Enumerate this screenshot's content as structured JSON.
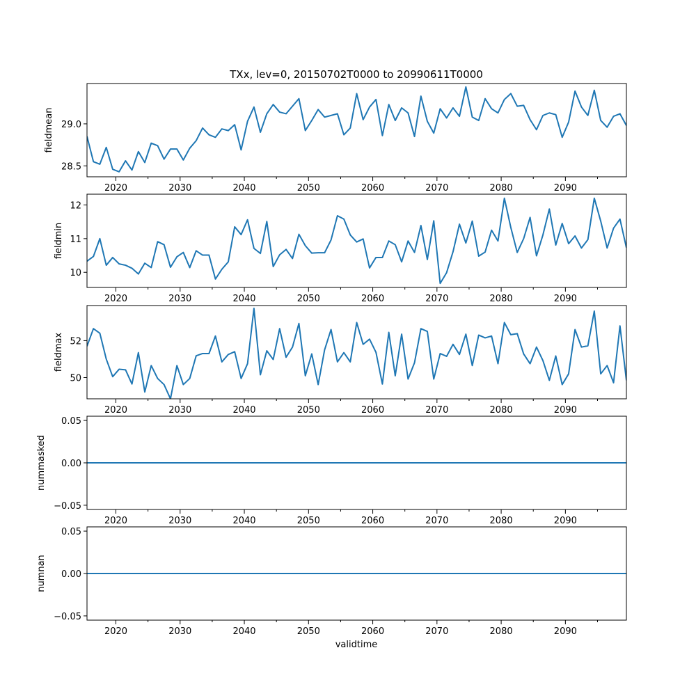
{
  "title": "TXx, lev=0, 20150702T0000 to 20990611T0000",
  "xlabel": "validtime",
  "line_color": "#1f77b4",
  "chart_data": [
    {
      "type": "line",
      "ylabel": "fieldmean",
      "xlim": [
        2015.5,
        2099.5
      ],
      "ylim": [
        28.37,
        29.48
      ],
      "xticks": [
        2020,
        2030,
        2040,
        2050,
        2060,
        2070,
        2080,
        2090
      ],
      "yticks": [
        28.5,
        29.0
      ],
      "ytick_labels": [
        "28.5",
        "29.0"
      ],
      "x_start": 2015.5,
      "values": [
        28.85,
        28.55,
        28.52,
        28.72,
        28.46,
        28.43,
        28.56,
        28.45,
        28.67,
        28.54,
        28.77,
        28.74,
        28.58,
        28.7,
        28.7,
        28.57,
        28.71,
        28.8,
        28.95,
        28.87,
        28.84,
        28.94,
        28.92,
        28.99,
        28.69,
        29.03,
        29.2,
        28.9,
        29.12,
        29.23,
        29.14,
        29.12,
        29.21,
        29.3,
        28.92,
        29.04,
        29.17,
        29.08,
        29.1,
        29.12,
        28.87,
        28.95,
        29.36,
        29.05,
        29.2,
        29.29,
        28.86,
        29.23,
        29.04,
        29.19,
        29.13,
        28.85,
        29.33,
        29.03,
        28.89,
        29.18,
        29.07,
        29.19,
        29.09,
        29.44,
        29.08,
        29.04,
        29.3,
        29.18,
        29.13,
        29.29,
        29.36,
        29.21,
        29.22,
        29.05,
        28.93,
        29.1,
        29.13,
        29.11,
        28.84,
        29.02,
        29.39,
        29.2,
        29.1,
        29.4,
        29.04,
        28.96,
        29.09,
        29.12,
        28.98
      ]
    },
    {
      "type": "line",
      "ylabel": "fieldmin",
      "xlim": [
        2015.5,
        2099.5
      ],
      "ylim": [
        9.55,
        12.32
      ],
      "xticks": [
        2020,
        2030,
        2040,
        2050,
        2060,
        2070,
        2080,
        2090
      ],
      "yticks": [
        10,
        11,
        12
      ],
      "ytick_labels": [
        "10",
        "11",
        "12"
      ],
      "x_start": 2015.5,
      "values": [
        10.33,
        10.47,
        11.0,
        10.21,
        10.44,
        10.25,
        10.21,
        10.12,
        9.95,
        10.27,
        10.14,
        10.91,
        10.82,
        10.15,
        10.46,
        10.59,
        10.14,
        10.64,
        10.51,
        10.51,
        9.8,
        10.09,
        10.31,
        11.35,
        11.12,
        11.56,
        10.71,
        10.56,
        11.51,
        10.17,
        10.52,
        10.68,
        10.41,
        11.13,
        10.79,
        10.57,
        10.58,
        10.58,
        10.96,
        11.68,
        11.58,
        11.11,
        10.9,
        10.99,
        10.13,
        10.44,
        10.44,
        10.93,
        10.82,
        10.31,
        10.93,
        10.59,
        11.39,
        10.38,
        11.53,
        9.67,
        9.99,
        10.61,
        11.43,
        10.87,
        11.52,
        10.48,
        10.6,
        11.25,
        10.93,
        12.2,
        11.33,
        10.59,
        11.0,
        11.63,
        10.49,
        11.11,
        11.88,
        10.81,
        11.45,
        10.85,
        11.08,
        10.72,
        10.97,
        12.2,
        11.52,
        10.72,
        11.31,
        11.58,
        10.73
      ]
    },
    {
      "type": "line",
      "ylabel": "fieldmax",
      "xlim": [
        2015.5,
        2099.5
      ],
      "ylim": [
        48.85,
        53.9
      ],
      "xticks": [
        2020,
        2030,
        2040,
        2050,
        2060,
        2070,
        2080,
        2090
      ],
      "yticks": [
        50,
        52
      ],
      "ytick_labels": [
        "50",
        "52"
      ],
      "x_start": 2015.5,
      "values": [
        51.7,
        52.65,
        52.4,
        51.0,
        50.05,
        50.45,
        50.42,
        49.65,
        51.35,
        49.22,
        50.65,
        49.95,
        49.62,
        48.85,
        50.65,
        49.62,
        49.95,
        51.18,
        51.3,
        51.3,
        52.25,
        50.85,
        51.25,
        51.4,
        49.95,
        50.75,
        53.75,
        50.15,
        51.45,
        50.98,
        52.65,
        51.1,
        51.65,
        52.93,
        50.1,
        51.28,
        49.62,
        51.5,
        52.6,
        50.85,
        51.35,
        50.85,
        52.98,
        51.8,
        52.08,
        51.37,
        49.65,
        52.45,
        50.1,
        52.35,
        49.92,
        50.8,
        52.65,
        52.5,
        49.92,
        51.3,
        51.15,
        51.8,
        51.25,
        52.35,
        50.65,
        52.3,
        52.15,
        52.25,
        50.75,
        52.98,
        52.32,
        52.38,
        51.28,
        50.75,
        51.65,
        50.92,
        49.85,
        51.17,
        49.62,
        50.2,
        52.6,
        51.65,
        51.72,
        53.6,
        50.2,
        50.65,
        49.72,
        52.8,
        49.85
      ]
    },
    {
      "type": "line",
      "ylabel": "nummasked",
      "xlim": [
        2015.5,
        2099.5
      ],
      "ylim": [
        -0.055,
        0.055
      ],
      "xticks": [
        2020,
        2030,
        2040,
        2050,
        2060,
        2070,
        2080,
        2090
      ],
      "yticks": [
        -0.05,
        0.0,
        0.05
      ],
      "ytick_labels": [
        "−0.05",
        "0.00",
        "0.05"
      ],
      "x_start": 2015.5,
      "values": [
        0,
        0
      ]
    },
    {
      "type": "line",
      "ylabel": "numnan",
      "xlim": [
        2015.5,
        2099.5
      ],
      "ylim": [
        -0.055,
        0.055
      ],
      "xticks": [
        2020,
        2030,
        2040,
        2050,
        2060,
        2070,
        2080,
        2090
      ],
      "yticks": [
        -0.05,
        0.0,
        0.05
      ],
      "ytick_labels": [
        "−0.05",
        "0.00",
        "0.05"
      ],
      "x_start": 2015.5,
      "values": [
        0,
        0
      ]
    }
  ]
}
